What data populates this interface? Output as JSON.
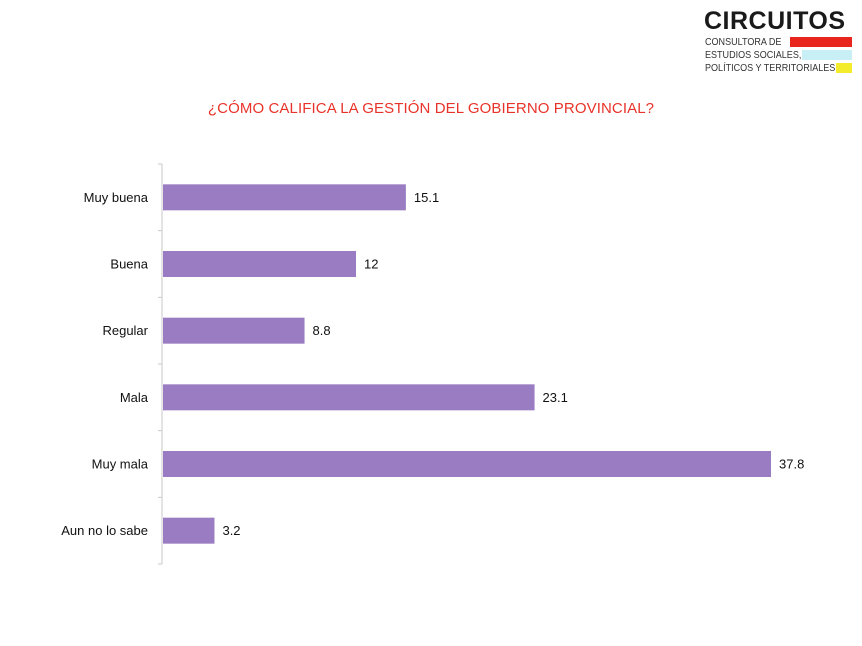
{
  "logo": {
    "brand": "CIRCUITOS",
    "line1": "CONSULTORA DE",
    "line2": "ESTUDIOS SOCIALES,",
    "line3": "POLÍTICOS Y TERRITORIALES",
    "colors": [
      "#e8261d",
      "#c8eef6",
      "#f2ec2c"
    ]
  },
  "chart_data": {
    "type": "bar",
    "orientation": "horizontal",
    "title": "¿CÓMO CALIFICA LA GESTIÓN DEL GOBIERNO PROVINCIAL?",
    "categories": [
      "Muy buena",
      "Buena",
      "Regular",
      "Mala",
      "Muy mala",
      "Aun no lo sabe"
    ],
    "values": [
      15.1,
      12,
      8.8,
      23.1,
      37.8,
      3.2
    ],
    "value_labels": [
      "15.1",
      "12",
      "8.8",
      "23.1",
      "37.8",
      "3.2"
    ],
    "xlim": [
      0,
      37.8
    ],
    "grid": false,
    "legend": "none",
    "bar_color": "#9a7cc2",
    "title_color": "#e8332a"
  }
}
